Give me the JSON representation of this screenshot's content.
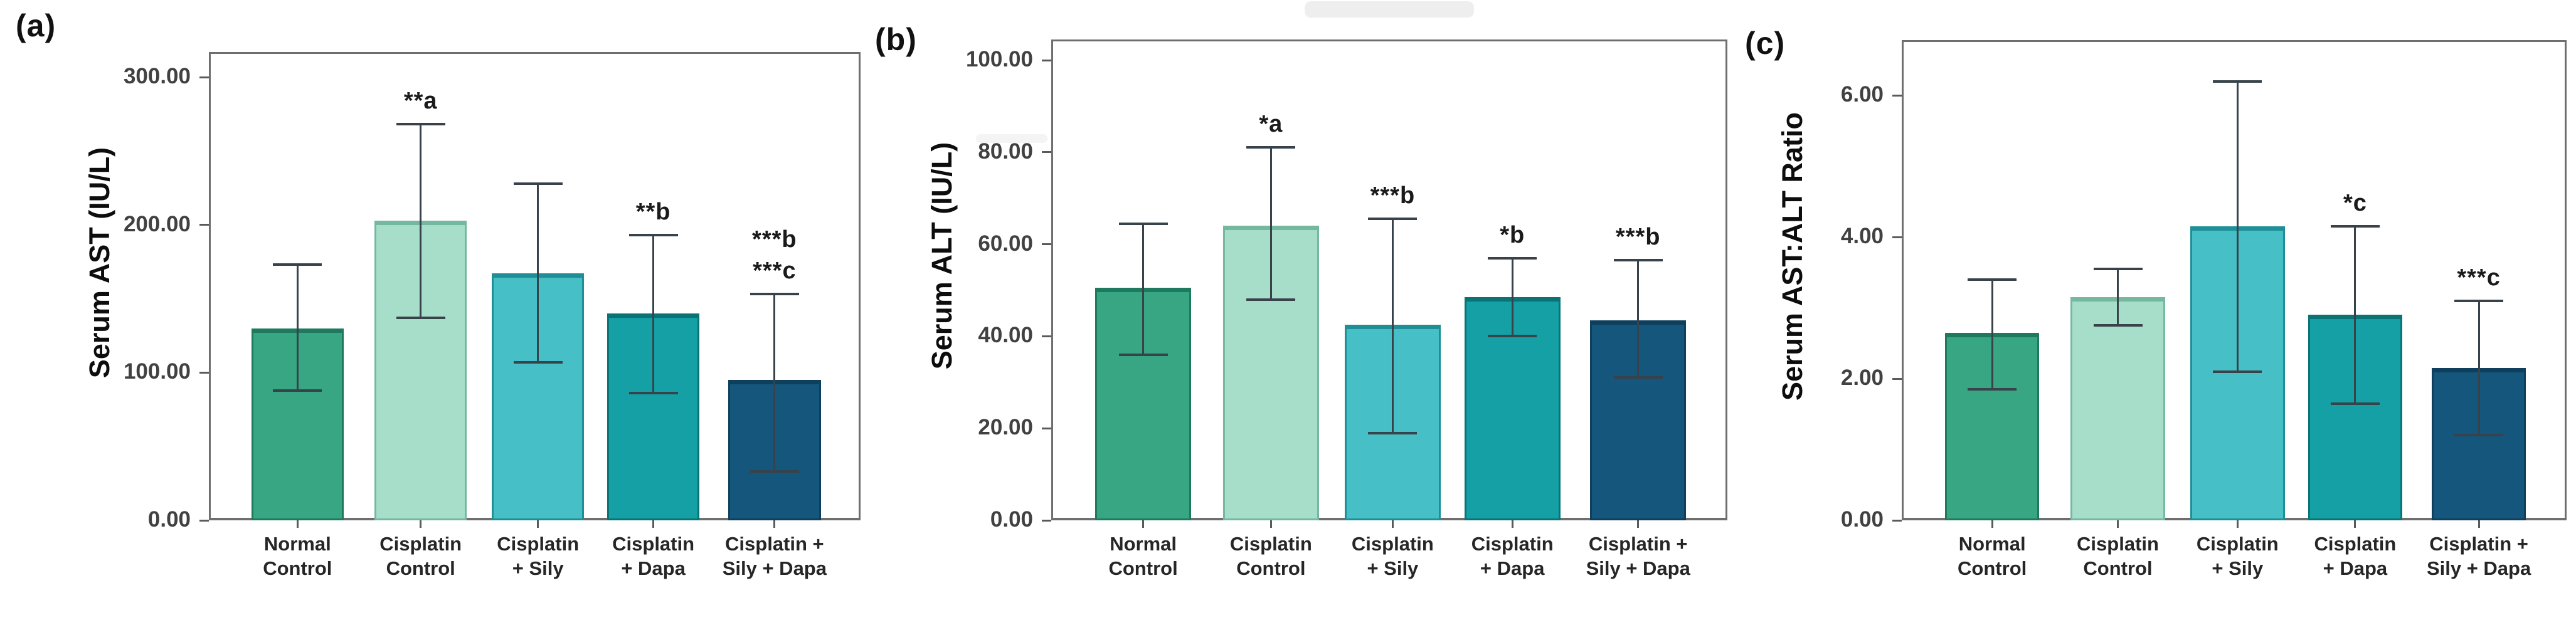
{
  "colors": {
    "background": "#ffffff",
    "bar_fills": [
      "#38A583",
      "#A6DEC9",
      "#47BFC7",
      "#14A0A5",
      "#15567C"
    ],
    "bar_borders": [
      "#1E7A5E",
      "#74B8A0",
      "#1E8F96",
      "#0A7376",
      "#0E3F5C"
    ],
    "error_bar": "#37424a",
    "axis_border": "#6e6e6e",
    "tick_label": "#414141",
    "category_label": "#262626",
    "annotation": "#1a1a1a",
    "panel_letter": "#111111"
  },
  "chart_data": [
    {
      "type": "bar",
      "panel_label": "(a)",
      "ylabel": "Serum AST (IU/L)",
      "categories": [
        "Normal Control",
        "Cisplatin Control",
        "Cisplatin + Sily",
        "Cisplatin + Dapa",
        "Cisplatin + Sily + Dapa"
      ],
      "category_labels": [
        [
          "Normal",
          "Control"
        ],
        [
          "Cisplatin",
          "Control"
        ],
        [
          "Cisplatin",
          "+ Sily"
        ],
        [
          "Cisplatin",
          "+ Dapa"
        ],
        [
          "Cisplatin +",
          "Sily + Dapa"
        ]
      ],
      "values": [
        130,
        203,
        167,
        140,
        95
      ],
      "error_low": [
        88,
        137,
        107,
        86,
        33
      ],
      "error_high": [
        173,
        268,
        228,
        193,
        153
      ],
      "annotations": [
        [],
        [
          "**a"
        ],
        [],
        [
          "**b"
        ],
        [
          "***b",
          "***c"
        ]
      ],
      "yticks": [
        0,
        100,
        200,
        300
      ],
      "ytick_labels": [
        "0.00",
        "100.00",
        "200.00",
        "300.00"
      ],
      "ylim": [
        0,
        317
      ],
      "grid": false,
      "legend": false
    },
    {
      "type": "bar",
      "panel_label": "(b)",
      "ylabel": "Serum ALT (IU/L)",
      "categories": [
        "Normal Control",
        "Cisplatin Control",
        "Cisplatin + Sily",
        "Cisplatin + Dapa",
        "Cisplatin + Sily + Dapa"
      ],
      "category_labels": [
        [
          "Normal",
          "Control"
        ],
        [
          "Cisplatin",
          "Control"
        ],
        [
          "Cisplatin",
          "+ Sily"
        ],
        [
          "Cisplatin",
          "+ Dapa"
        ],
        [
          "Cisplatin +",
          "Sily + Dapa"
        ]
      ],
      "values": [
        50.5,
        64,
        42.5,
        48.5,
        43.5
      ],
      "error_low": [
        36,
        48,
        19,
        40,
        31
      ],
      "error_high": [
        64.5,
        81,
        65.5,
        57,
        56.5
      ],
      "annotations": [
        [],
        [
          "*a"
        ],
        [
          "***b"
        ],
        [
          "*b"
        ],
        [
          "***b"
        ]
      ],
      "yticks": [
        0,
        20,
        40,
        60,
        80,
        100
      ],
      "ytick_labels": [
        "0.00",
        "20.00",
        "40.00",
        "60.00",
        "80.00",
        "100.00"
      ],
      "ylim": [
        0,
        104.5
      ],
      "grid": false,
      "legend": false
    },
    {
      "type": "bar",
      "panel_label": "(c)",
      "ylabel": "Serum AST:ALT Ratio",
      "categories": [
        "Normal Control",
        "Cisplatin Control",
        "Cisplatin + Sily",
        "Cisplatin + Dapa",
        "Cisplatin + Sily + Dapa"
      ],
      "category_labels": [
        [
          "Normal",
          "Control"
        ],
        [
          "Cisplatin",
          "Control"
        ],
        [
          "Cisplatin",
          "+ Sily"
        ],
        [
          "Cisplatin",
          "+ Dapa"
        ],
        [
          "Cisplatin +",
          "Sily + Dapa"
        ]
      ],
      "values": [
        2.65,
        3.15,
        4.15,
        2.9,
        2.15
      ],
      "error_low": [
        1.85,
        2.75,
        2.1,
        1.65,
        1.2
      ],
      "error_high": [
        3.4,
        3.55,
        6.2,
        4.15,
        3.1
      ],
      "annotations": [
        [],
        [],
        [],
        [
          "*c"
        ],
        [
          "***c"
        ]
      ],
      "yticks": [
        0,
        2,
        4,
        6
      ],
      "ytick_labels": [
        "0.00",
        "2.00",
        "4.00",
        "6.00"
      ],
      "ylim": [
        0,
        6.78
      ],
      "grid": false,
      "legend": false
    }
  ]
}
